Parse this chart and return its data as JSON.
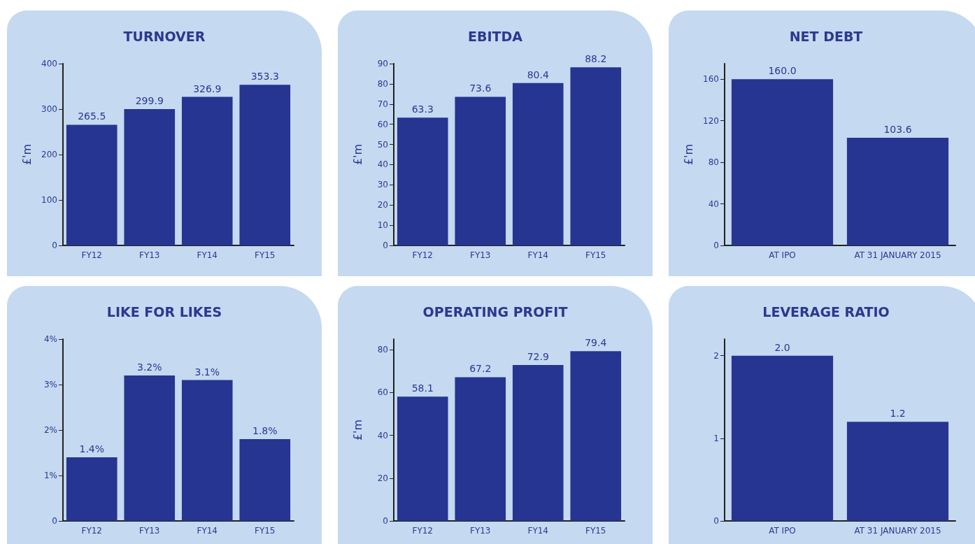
{
  "chart_data": [
    {
      "type": "bar",
      "title": "TURNOVER",
      "ylabel": "£'m",
      "categories": [
        "FY12",
        "FY13",
        "FY14",
        "FY15"
      ],
      "values": [
        265.5,
        299.9,
        326.9,
        353.3
      ],
      "color": "#263591",
      "ylim": [
        0,
        400
      ],
      "yticks": [
        0,
        100,
        200,
        300,
        400
      ],
      "value_labels": [
        "265.5",
        "299.9",
        "326.9",
        "353.3"
      ],
      "grid": false
    },
    {
      "type": "bar",
      "title": "EBITDA",
      "ylabel": "£'m",
      "categories": [
        "FY12",
        "FY13",
        "FY14",
        "FY15"
      ],
      "values": [
        63.3,
        73.6,
        80.4,
        88.2
      ],
      "color": "#263591",
      "ylim": [
        0,
        90
      ],
      "yticks": [
        0,
        10,
        20,
        30,
        40,
        50,
        60,
        70,
        80,
        90
      ],
      "value_labels": [
        "63.3",
        "73.6",
        "80.4",
        "88.2"
      ],
      "grid": false
    },
    {
      "type": "bar",
      "title": "NET DEBT",
      "ylabel": "£'m",
      "categories": [
        "AT IPO",
        "AT 31 JANUARY 2015"
      ],
      "values": [
        160.0,
        103.6
      ],
      "color": "#263591",
      "ylim": [
        0,
        175
      ],
      "yticks": [
        0,
        40,
        80,
        120,
        160
      ],
      "value_labels": [
        "160.0",
        "103.6"
      ],
      "grid": false
    },
    {
      "type": "bar",
      "title": "LIKE FOR LIKES",
      "categories": [
        "FY12",
        "FY13",
        "FY14",
        "FY15"
      ],
      "values": [
        1.4,
        3.2,
        3.1,
        1.8
      ],
      "color": "#263591",
      "ylim": [
        0,
        4
      ],
      "yticks": [
        0,
        {
          "value": 1,
          "label": "1%"
        },
        {
          "value": 2,
          "label": "2%"
        },
        {
          "value": 3,
          "label": "3%"
        },
        {
          "value": 4,
          "label": "4%"
        }
      ],
      "value_labels": [
        "1.4%",
        "3.2%",
        "3.1%",
        "1.8%"
      ],
      "grid": false
    },
    {
      "type": "bar",
      "title": "OPERATING PROFIT",
      "ylabel": "£'m",
      "categories": [
        "FY12",
        "FY13",
        "FY14",
        "FY15"
      ],
      "values": [
        58.1,
        67.2,
        72.9,
        79.4
      ],
      "color": "#263591",
      "ylim": [
        0,
        85
      ],
      "yticks": [
        0,
        20,
        40,
        60,
        80
      ],
      "value_labels": [
        "58.1",
        "67.2",
        "72.9",
        "79.4"
      ],
      "grid": false
    },
    {
      "type": "bar",
      "title": "LEVERAGE RATIO",
      "categories": [
        "AT IPO",
        "AT 31 JANUARY 2015"
      ],
      "values": [
        2.0,
        1.2
      ],
      "color": "#263591",
      "ylim": [
        0,
        2.2
      ],
      "yticks": [
        0,
        1,
        2
      ],
      "value_labels": [
        "2.0",
        "1.2"
      ],
      "grid": false
    }
  ]
}
